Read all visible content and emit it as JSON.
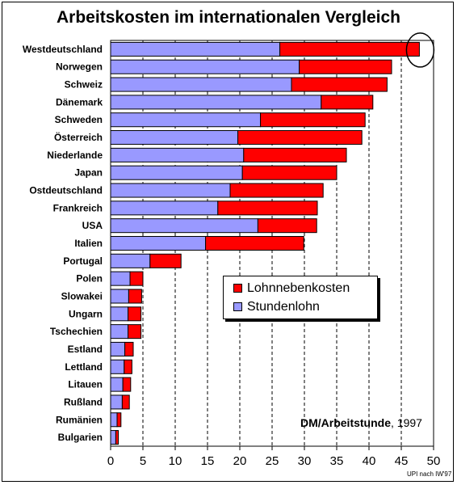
{
  "chart_data": {
    "type": "bar",
    "orientation": "horizontal",
    "stacked": true,
    "title": "Arbeitskosten im internationalen Vergleich",
    "categories": [
      "Westdeutschland",
      "Norwegen",
      "Schweiz",
      "Dänemark",
      "Schweden",
      "Österreich",
      "Niederlande",
      "Japan",
      "Ostdeutschland",
      "Frankreich",
      "USA",
      "Italien",
      "Portugal",
      "Polen",
      "Slowakei",
      "Ungarn",
      "Tschechien",
      "Estland",
      "Lettland",
      "Litauen",
      "Rußland",
      "Rumänien",
      "Bulgarien"
    ],
    "series": [
      {
        "name": "Stundenlohn",
        "color": "#9999ff",
        "values": [
          26.2,
          29.2,
          28.0,
          32.6,
          23.2,
          19.7,
          20.6,
          20.4,
          18.5,
          16.6,
          22.8,
          14.7,
          6.1,
          3.0,
          2.8,
          2.7,
          2.7,
          2.2,
          2.1,
          1.9,
          1.8,
          1.0,
          0.8
        ]
      },
      {
        "name": "Lohnnebenkosten",
        "color": "#ff0000",
        "values": [
          21.6,
          14.3,
          14.8,
          8.0,
          16.2,
          19.2,
          15.9,
          14.6,
          14.4,
          15.4,
          9.1,
          15.2,
          4.8,
          2.0,
          2.0,
          2.0,
          2.0,
          1.3,
          1.2,
          1.2,
          1.1,
          0.6,
          0.4
        ]
      }
    ],
    "xlim": [
      0,
      50
    ],
    "xticks": [
      0,
      5,
      10,
      15,
      20,
      25,
      30,
      35,
      40,
      45,
      50
    ],
    "grid": "vertical dashed",
    "legend_position": "right-center",
    "highlight": "Westdeutschland (ellipse around bar end)",
    "unit_label": "DM/Arbeitstunde",
    "year": "1997",
    "source": "UPI nach IW'97"
  }
}
